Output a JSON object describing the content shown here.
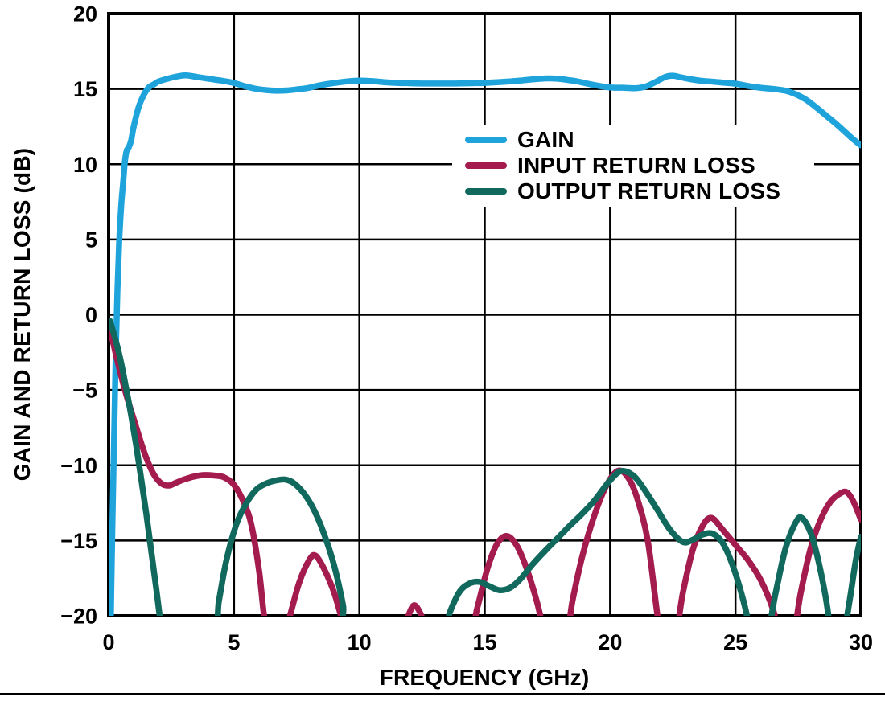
{
  "chart_data": {
    "type": "line",
    "xlabel": "FREQUENCY (GHz)",
    "ylabel": "GAIN AND RETURN LOSS (dB)",
    "xlim": [
      0,
      30
    ],
    "ylim": [
      -20,
      20
    ],
    "x_ticks": [
      0,
      5,
      10,
      15,
      20,
      25,
      30
    ],
    "x_tick_labels": [
      "0",
      "5",
      "10",
      "15",
      "20",
      "25",
      "30"
    ],
    "y_ticks": [
      20,
      15,
      10,
      5,
      0,
      -5,
      -10,
      -15,
      -20
    ],
    "y_tick_labels": [
      "20",
      "15",
      "10",
      "5",
      "0",
      "−5",
      "−10",
      "−15",
      "−20"
    ],
    "grid": true,
    "legend_position": "inside upper right",
    "axis_color": "#000000",
    "series": [
      {
        "name": "GAIN",
        "color": "#1EA3DB",
        "points": [
          [
            0.08,
            -21
          ],
          [
            0.15,
            -14
          ],
          [
            0.22,
            -8
          ],
          [
            0.28,
            -3
          ],
          [
            0.35,
            1.5
          ],
          [
            0.42,
            4.8
          ],
          [
            0.5,
            7.2
          ],
          [
            0.58,
            8.8
          ],
          [
            0.65,
            10.2
          ],
          [
            0.72,
            10.9
          ],
          [
            0.8,
            11.1
          ],
          [
            0.9,
            11.6
          ],
          [
            1.0,
            12.5
          ],
          [
            1.2,
            13.8
          ],
          [
            1.4,
            14.6
          ],
          [
            1.6,
            15.1
          ],
          [
            1.8,
            15.3
          ],
          [
            2.0,
            15.5
          ],
          [
            2.4,
            15.7
          ],
          [
            2.8,
            15.85
          ],
          [
            3.1,
            15.9
          ],
          [
            3.5,
            15.8
          ],
          [
            3.9,
            15.7
          ],
          [
            4.3,
            15.6
          ],
          [
            4.7,
            15.5
          ],
          [
            5.1,
            15.35
          ],
          [
            5.5,
            15.15
          ],
          [
            5.9,
            15.0
          ],
          [
            6.3,
            14.92
          ],
          [
            6.7,
            14.88
          ],
          [
            7.1,
            14.9
          ],
          [
            7.5,
            14.97
          ],
          [
            7.9,
            15.05
          ],
          [
            8.3,
            15.2
          ],
          [
            8.7,
            15.32
          ],
          [
            9.1,
            15.42
          ],
          [
            9.5,
            15.5
          ],
          [
            10.0,
            15.55
          ],
          [
            10.5,
            15.52
          ],
          [
            11.0,
            15.45
          ],
          [
            11.5,
            15.4
          ],
          [
            12.0,
            15.38
          ],
          [
            12.5,
            15.36
          ],
          [
            13.0,
            15.36
          ],
          [
            13.5,
            15.36
          ],
          [
            14.0,
            15.37
          ],
          [
            14.5,
            15.38
          ],
          [
            15.0,
            15.4
          ],
          [
            15.5,
            15.45
          ],
          [
            16.0,
            15.5
          ],
          [
            16.5,
            15.57
          ],
          [
            17.0,
            15.65
          ],
          [
            17.5,
            15.7
          ],
          [
            17.9,
            15.68
          ],
          [
            18.3,
            15.6
          ],
          [
            18.7,
            15.5
          ],
          [
            19.1,
            15.35
          ],
          [
            19.5,
            15.22
          ],
          [
            20.0,
            15.1
          ],
          [
            20.5,
            15.08
          ],
          [
            21.0,
            15.05
          ],
          [
            21.4,
            15.15
          ],
          [
            21.8,
            15.45
          ],
          [
            22.2,
            15.8
          ],
          [
            22.5,
            15.88
          ],
          [
            22.8,
            15.78
          ],
          [
            23.2,
            15.65
          ],
          [
            23.6,
            15.55
          ],
          [
            24.0,
            15.5
          ],
          [
            24.5,
            15.42
          ],
          [
            25.0,
            15.35
          ],
          [
            25.5,
            15.2
          ],
          [
            26.0,
            15.08
          ],
          [
            26.5,
            15.0
          ],
          [
            27.0,
            14.88
          ],
          [
            27.4,
            14.65
          ],
          [
            27.8,
            14.3
          ],
          [
            28.2,
            13.8
          ],
          [
            28.6,
            13.25
          ],
          [
            29.0,
            12.7
          ],
          [
            29.4,
            12.1
          ],
          [
            29.7,
            11.65
          ],
          [
            30.0,
            11.25
          ]
        ]
      },
      {
        "name": "INPUT RETURN LOSS",
        "color": "#A31C4D",
        "points": [
          [
            0.05,
            -0.9
          ],
          [
            0.3,
            -2.7
          ],
          [
            0.6,
            -4.7
          ],
          [
            0.9,
            -6.4
          ],
          [
            1.2,
            -8.0
          ],
          [
            1.5,
            -9.5
          ],
          [
            1.8,
            -10.6
          ],
          [
            2.1,
            -11.2
          ],
          [
            2.4,
            -11.35
          ],
          [
            2.7,
            -11.15
          ],
          [
            3.0,
            -10.95
          ],
          [
            3.4,
            -10.75
          ],
          [
            3.8,
            -10.65
          ],
          [
            4.2,
            -10.68
          ],
          [
            4.6,
            -10.8
          ],
          [
            5.0,
            -11.3
          ],
          [
            5.4,
            -12.5
          ],
          [
            5.7,
            -14.0
          ],
          [
            6.0,
            -17.0
          ],
          [
            6.2,
            -20.0
          ],
          [
            6.4,
            -21.5
          ],
          [
            6.9,
            -21.8
          ],
          [
            7.2,
            -20.2
          ],
          [
            7.6,
            -17.8
          ],
          [
            8.0,
            -16.3
          ],
          [
            8.25,
            -16.0
          ],
          [
            8.6,
            -16.9
          ],
          [
            9.0,
            -18.5
          ],
          [
            9.35,
            -20.5
          ],
          [
            9.6,
            -21.8
          ],
          [
            11.5,
            -21.8
          ],
          [
            11.9,
            -20.2
          ],
          [
            12.2,
            -19.3
          ],
          [
            12.55,
            -20.3
          ],
          [
            12.8,
            -21.8
          ],
          [
            14.3,
            -21.8
          ],
          [
            14.7,
            -19.5
          ],
          [
            15.1,
            -16.9
          ],
          [
            15.5,
            -15.2
          ],
          [
            15.9,
            -14.7
          ],
          [
            16.3,
            -15.4
          ],
          [
            16.7,
            -17.0
          ],
          [
            17.1,
            -19.2
          ],
          [
            17.35,
            -21.0
          ],
          [
            17.5,
            -21.8
          ],
          [
            18.2,
            -21.8
          ],
          [
            18.5,
            -19.0
          ],
          [
            18.9,
            -16.0
          ],
          [
            19.4,
            -13.2
          ],
          [
            19.9,
            -11.2
          ],
          [
            20.35,
            -10.35
          ],
          [
            20.75,
            -10.9
          ],
          [
            21.1,
            -12.3
          ],
          [
            21.5,
            -15.0
          ],
          [
            21.85,
            -19.5
          ],
          [
            22.05,
            -21.8
          ],
          [
            22.55,
            -21.8
          ],
          [
            22.9,
            -18.5
          ],
          [
            23.3,
            -15.6
          ],
          [
            23.7,
            -14.0
          ],
          [
            24.05,
            -13.5
          ],
          [
            24.5,
            -14.3
          ],
          [
            25.0,
            -15.3
          ],
          [
            25.5,
            -16.3
          ],
          [
            26.0,
            -17.6
          ],
          [
            26.5,
            -19.6
          ],
          [
            26.85,
            -21.8
          ],
          [
            27.25,
            -21.8
          ],
          [
            27.6,
            -18.5
          ],
          [
            28.0,
            -15.5
          ],
          [
            28.4,
            -13.6
          ],
          [
            28.8,
            -12.4
          ],
          [
            29.2,
            -11.85
          ],
          [
            29.45,
            -11.8
          ],
          [
            29.7,
            -12.4
          ],
          [
            30.0,
            -13.6
          ]
        ]
      },
      {
        "name": "OUTPUT RETURN LOSS",
        "color": "#11695E",
        "points": [
          [
            0.05,
            -0.4
          ],
          [
            0.3,
            -1.8
          ],
          [
            0.5,
            -3.2
          ],
          [
            0.7,
            -4.9
          ],
          [
            0.9,
            -6.7
          ],
          [
            1.1,
            -8.7
          ],
          [
            1.3,
            -10.9
          ],
          [
            1.5,
            -13.2
          ],
          [
            1.7,
            -15.7
          ],
          [
            1.9,
            -18.2
          ],
          [
            2.1,
            -20.7
          ],
          [
            2.3,
            -21.8
          ],
          [
            4.1,
            -21.8
          ],
          [
            4.4,
            -19.0
          ],
          [
            4.7,
            -16.3
          ],
          [
            5.1,
            -13.9
          ],
          [
            5.5,
            -12.5
          ],
          [
            5.9,
            -11.6
          ],
          [
            6.3,
            -11.2
          ],
          [
            6.7,
            -11.0
          ],
          [
            7.05,
            -10.95
          ],
          [
            7.4,
            -11.2
          ],
          [
            7.8,
            -11.9
          ],
          [
            8.2,
            -13.0
          ],
          [
            8.6,
            -14.6
          ],
          [
            9.0,
            -16.7
          ],
          [
            9.35,
            -19.3
          ],
          [
            9.6,
            -21.8
          ],
          [
            13.2,
            -21.8
          ],
          [
            13.6,
            -19.8
          ],
          [
            14.0,
            -18.4
          ],
          [
            14.4,
            -17.85
          ],
          [
            14.8,
            -17.75
          ],
          [
            15.2,
            -18.05
          ],
          [
            15.6,
            -18.3
          ],
          [
            16.0,
            -18.15
          ],
          [
            16.4,
            -17.6
          ],
          [
            16.9,
            -16.6
          ],
          [
            17.4,
            -15.7
          ],
          [
            17.9,
            -14.85
          ],
          [
            18.4,
            -14.0
          ],
          [
            18.9,
            -13.2
          ],
          [
            19.4,
            -12.3
          ],
          [
            19.9,
            -11.2
          ],
          [
            20.3,
            -10.5
          ],
          [
            20.6,
            -10.4
          ],
          [
            21.0,
            -10.8
          ],
          [
            21.4,
            -11.7
          ],
          [
            21.9,
            -13.0
          ],
          [
            22.4,
            -14.3
          ],
          [
            22.9,
            -15.1
          ],
          [
            23.3,
            -14.95
          ],
          [
            23.7,
            -14.6
          ],
          [
            24.1,
            -14.55
          ],
          [
            24.5,
            -15.2
          ],
          [
            24.9,
            -16.7
          ],
          [
            25.3,
            -18.9
          ],
          [
            25.6,
            -21.0
          ],
          [
            25.8,
            -21.8
          ],
          [
            26.2,
            -21.8
          ],
          [
            26.6,
            -18.5
          ],
          [
            27.0,
            -15.5
          ],
          [
            27.4,
            -13.8
          ],
          [
            27.65,
            -13.5
          ],
          [
            28.0,
            -14.5
          ],
          [
            28.3,
            -16.3
          ],
          [
            28.6,
            -18.8
          ],
          [
            28.8,
            -21.0
          ],
          [
            29.0,
            -21.8
          ],
          [
            29.25,
            -21.8
          ],
          [
            29.55,
            -19.0
          ],
          [
            29.8,
            -16.3
          ],
          [
            30.0,
            -14.75
          ]
        ]
      }
    ]
  }
}
